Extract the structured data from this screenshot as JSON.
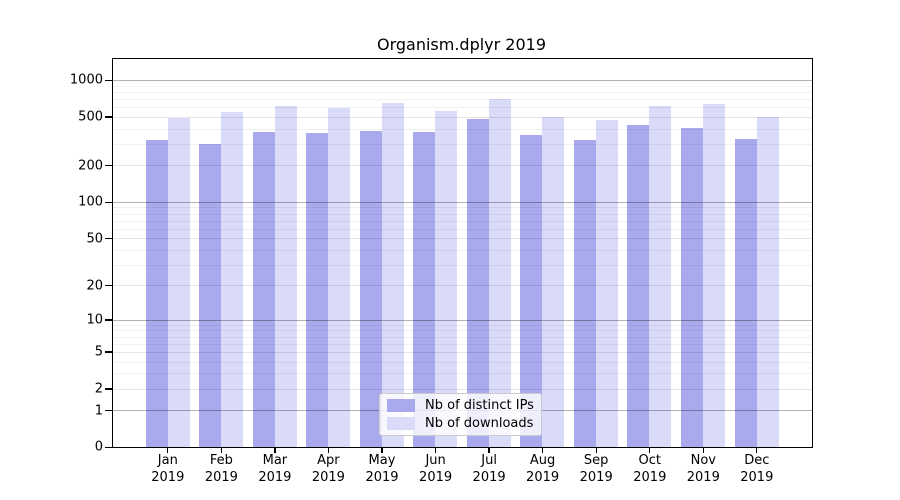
{
  "title": "Organism.dplyr 2019",
  "chart_data": {
    "type": "bar",
    "title": "Organism.dplyr 2019",
    "categories": [
      "Jan 2019",
      "Feb 2019",
      "Mar 2019",
      "Apr 2019",
      "May 2019",
      "Jun 2019",
      "Jul 2019",
      "Aug 2019",
      "Sep 2019",
      "Oct 2019",
      "Nov 2019",
      "Dec 2019"
    ],
    "series": [
      {
        "name": "Nb of distinct IPs",
        "color": "#a9a9ee",
        "values": [
          326,
          299,
          377,
          370,
          382,
          375,
          476,
          354,
          322,
          428,
          406,
          332
        ]
      },
      {
        "name": "Nb of downloads",
        "color": "#dadaf9",
        "values": [
          490,
          543,
          616,
          586,
          644,
          560,
          694,
          497,
          467,
          612,
          635,
          500
        ]
      }
    ],
    "xlabel": "",
    "ylabel": "",
    "yscale": "log1p",
    "ylim": [
      0,
      1250
    ],
    "yticks": [
      0,
      1,
      2,
      5,
      10,
      20,
      50,
      100,
      200,
      500,
      1000
    ],
    "decade_ticks": [
      1,
      10,
      100,
      1000
    ],
    "minor_yticks": [
      3,
      4,
      6,
      7,
      8,
      9,
      30,
      40,
      60,
      70,
      80,
      90,
      300,
      400,
      600,
      700,
      800,
      900
    ],
    "grid": true,
    "legend_position": "lower center"
  },
  "colors": {
    "distinct_ips": "#a9a9ee",
    "downloads": "#dadaf9",
    "grid_decade": "#b3b3b3",
    "grid_minor": "#ececec",
    "spine": "#000000",
    "legend_border": "#cbcbcb"
  }
}
